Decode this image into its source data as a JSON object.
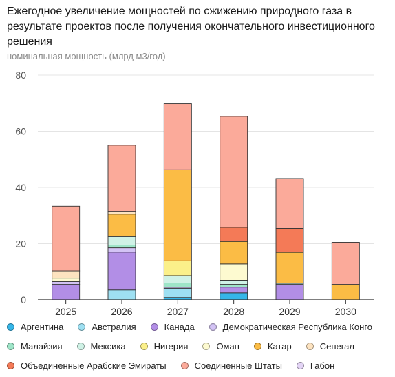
{
  "chart_data": {
    "type": "bar",
    "stacked": true,
    "title": "Ежегодное увеличение мощностей по сжижению природного газа в результате проектов после получения окончательного инвестиционного решения",
    "ylabel": "номинальная мощность (млрд м3/год)",
    "xlabel": "",
    "categories": [
      "2025",
      "2026",
      "2027",
      "2028",
      "2029",
      "2030"
    ],
    "ylim": [
      0,
      80
    ],
    "yticks": [
      0,
      20,
      40,
      60,
      80
    ],
    "grid": true,
    "legend_position": "bottom",
    "series": [
      {
        "name": "Аргентина",
        "color": "#35b6e8",
        "values": [
          0,
          0,
          0.8,
          2.5,
          0,
          0
        ]
      },
      {
        "name": "Австралия",
        "color": "#9ee0f2",
        "values": [
          0,
          3.5,
          3.3,
          0,
          0,
          0
        ]
      },
      {
        "name": "Канада",
        "color": "#b28ee6",
        "values": [
          5.5,
          13.5,
          0,
          2.0,
          5.5,
          0
        ]
      },
      {
        "name": "Демократическая Республика Конго",
        "color": "#d3c3f5",
        "values": [
          1.0,
          1.5,
          0.4,
          0,
          0,
          0
        ]
      },
      {
        "name": "Малайзия",
        "color": "#9ee5c8",
        "values": [
          0,
          1.0,
          1.5,
          1.0,
          0,
          0
        ]
      },
      {
        "name": "Мексика",
        "color": "#cff2e6",
        "values": [
          0,
          3.0,
          2.6,
          1.5,
          0.4,
          0
        ]
      },
      {
        "name": "Нигерия",
        "color": "#fbf08a",
        "values": [
          0,
          0,
          5.3,
          0,
          0,
          0
        ]
      },
      {
        "name": "Оман",
        "color": "#fdfad0",
        "values": [
          1.2,
          0,
          0,
          5.8,
          0,
          0
        ]
      },
      {
        "name": "Катар",
        "color": "#fbbc45",
        "values": [
          0,
          8.0,
          32.4,
          8.0,
          11.0,
          5.5
        ]
      },
      {
        "name": "Сенегал",
        "color": "#fde3c0",
        "values": [
          2.6,
          1.0,
          0,
          0,
          0,
          0
        ]
      },
      {
        "name": "Объединенные Арабские Эмираты",
        "color": "#f47a57",
        "values": [
          0,
          0,
          0,
          5.0,
          8.5,
          0
        ]
      },
      {
        "name": "Соединенные Штаты",
        "color": "#fbaa9a",
        "values": [
          23.0,
          23.5,
          23.5,
          39.5,
          17.8,
          15.0
        ]
      },
      {
        "name": "Габон",
        "color": "#e3d4f5",
        "values": [
          0,
          0,
          0,
          0,
          0,
          0
        ]
      }
    ]
  }
}
